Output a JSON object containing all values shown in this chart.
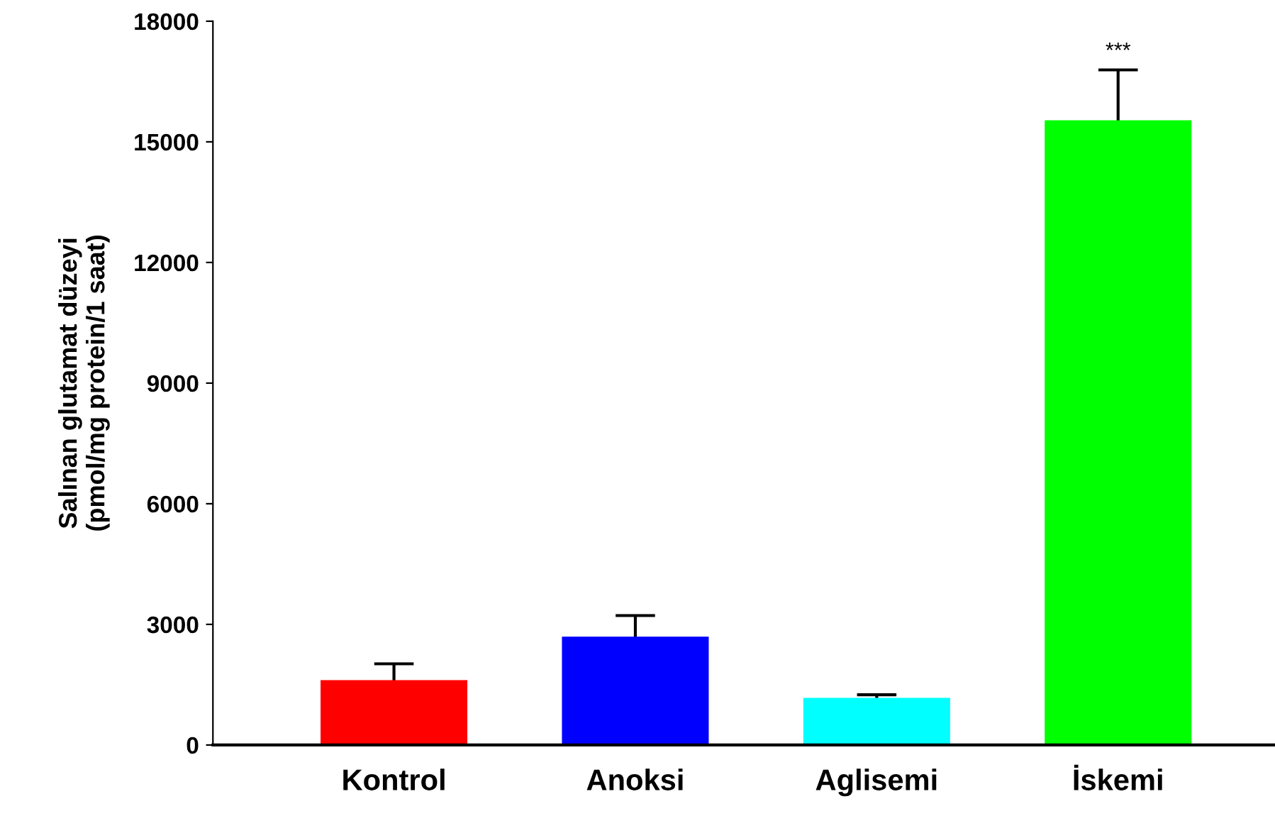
{
  "chart_data": {
    "type": "bar",
    "ylabel": "Salınan glutamat düzeyi\n(pmol/mg protein/1 saat)",
    "categories": [
      "Kontrol",
      "Anoksi",
      "Aglisemi",
      "İskemi"
    ],
    "values": [
      1590,
      2670,
      1150,
      15510
    ],
    "colors": [
      "#ff0000",
      "#0000ff",
      "#00ffff",
      "#00ff00"
    ],
    "errors": [
      430,
      550,
      100,
      1280
    ],
    "ylim": [
      0,
      18000
    ],
    "yticks": [
      0,
      3000,
      6000,
      9000,
      12000,
      15000,
      18000
    ],
    "grid": false,
    "annotations": [
      "***"
    ]
  }
}
